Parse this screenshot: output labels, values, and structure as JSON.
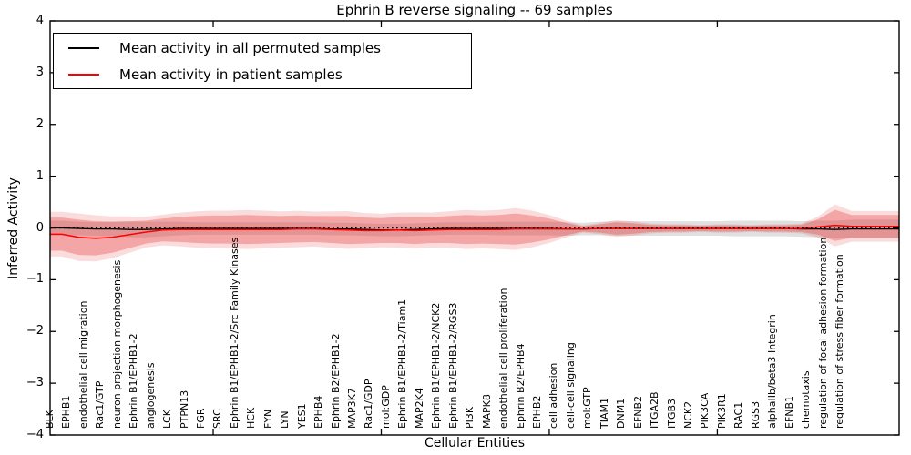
{
  "figure": {
    "title": "Ephrin B reverse signaling -- 69 samples",
    "xlabel": "Cellular Entities",
    "ylabel": "Inferred Activity"
  },
  "legend": {
    "items": [
      {
        "label": "Mean activity in all permuted samples",
        "color": "#000000"
      },
      {
        "label": "Mean activity in patient samples",
        "color": "#ff0000"
      }
    ]
  },
  "chart_data": {
    "type": "line",
    "title": "Ephrin B reverse signaling -- 69 samples",
    "xlabel": "Cellular Entities",
    "ylabel": "Inferred Activity",
    "ylim": [
      -4,
      4
    ],
    "ytick_labels": [
      "4",
      "3",
      "2",
      "1",
      "0",
      "−1",
      "−2",
      "−3",
      "−4"
    ],
    "ytick_values": [
      4,
      3,
      2,
      1,
      0,
      -1,
      -2,
      -3,
      -4
    ],
    "xtick_indices": [
      9,
      19,
      29,
      39
    ],
    "grid": false,
    "legend_position": "upper left",
    "zero_reference_line": {
      "style": "dotted",
      "color": "#000000",
      "y": 0
    },
    "colors": {
      "permuted_line": "#000000",
      "patient_line": "#ff0000",
      "permuted_band": "rgba(0,0,0,0.12)",
      "patient_band_inner": "rgba(230,40,40,0.30)",
      "patient_band_outer": "rgba(230,40,40,0.16)"
    },
    "categories": [
      "BLK",
      "EPHB1",
      "endothelial cell migration",
      "Rac1/GTP",
      "neuron projection morphogenesis",
      "Ephrin B1/EPHB1-2",
      "angiogenesis",
      "LCK",
      "PTPN13",
      "FGR",
      "SRC",
      "Ephrin B1/EPHB1-2/Src Family Kinases",
      "HCK",
      "FYN",
      "LYN",
      "YES1",
      "EPHB4",
      "Ephrin B2/EPHB1-2",
      "MAP3K7",
      "Rac1/GDP",
      "mol:GDP",
      "Ephrin B1/EPHB1-2/Tiam1",
      "MAP2K4",
      "Ephrin B1/EPHB1-2/NCK2",
      "Ephrin B1/EPHB1-2/RGS3",
      "PI3K",
      "MAPK8",
      "endothelial cell proliferation",
      "Ephrin B2/EPHB4",
      "EPHB2",
      "cell adhesion",
      "cell-cell signaling",
      "mol:GTP",
      "TIAM1",
      "DNM1",
      "EFNB2",
      "ITGA2B",
      "ITGB3",
      "NCK2",
      "PIK3CA",
      "PIK3R1",
      "RAC1",
      "RGS3",
      "alphaIIb/beta3 Integrin",
      "EFNB1",
      "chemotaxis",
      "regulation of focal adhesion formation",
      "regulation of stress fiber formation"
    ],
    "series": [
      {
        "name": "Mean activity in all permuted samples",
        "color": "#000000",
        "values": [
          0,
          -0.01,
          -0.02,
          -0.02,
          -0.03,
          -0.03,
          -0.02,
          -0.01,
          -0.01,
          -0.01,
          -0.01,
          -0.01,
          -0.01,
          -0.01,
          -0.01,
          -0.01,
          -0.02,
          -0.02,
          -0.03,
          -0.04,
          -0.04,
          -0.03,
          -0.02,
          -0.01,
          -0.01,
          -0.01,
          -0.01,
          -0.01,
          -0.01,
          -0.01,
          -0.02,
          -0.02,
          -0.01,
          -0.01,
          -0.01,
          -0.01,
          -0.01,
          -0.01,
          -0.01,
          -0.01,
          -0.01,
          -0.01,
          -0.01,
          -0.01,
          -0.02,
          -0.02,
          -0.03,
          -0.02
        ],
        "band_halfwidth": [
          0.14,
          0.13,
          0.13,
          0.14,
          0.15,
          0.15,
          0.14,
          0.13,
          0.12,
          0.12,
          0.12,
          0.12,
          0.12,
          0.12,
          0.12,
          0.12,
          0.12,
          0.12,
          0.12,
          0.12,
          0.12,
          0.12,
          0.12,
          0.12,
          0.12,
          0.12,
          0.13,
          0.13,
          0.13,
          0.13,
          0.13,
          0.12,
          0.13,
          0.14,
          0.14,
          0.14,
          0.14,
          0.14,
          0.14,
          0.14,
          0.15,
          0.15,
          0.15,
          0.15,
          0.15,
          0.16,
          0.17,
          0.18
        ]
      },
      {
        "name": "Mean activity in patient samples",
        "color": "#ff0000",
        "values": [
          -0.12,
          -0.18,
          -0.2,
          -0.18,
          -0.13,
          -0.08,
          -0.04,
          -0.03,
          -0.03,
          -0.03,
          -0.03,
          -0.03,
          -0.03,
          -0.03,
          -0.02,
          -0.02,
          -0.03,
          -0.04,
          -0.05,
          -0.05,
          -0.04,
          -0.05,
          -0.04,
          -0.03,
          -0.03,
          -0.03,
          -0.03,
          -0.02,
          -0.02,
          -0.02,
          -0.02,
          -0.02,
          -0.01,
          -0.01,
          -0.01,
          -0.01,
          -0.01,
          -0.01,
          -0.01,
          -0.01,
          -0.01,
          -0.01,
          -0.01,
          -0.01,
          -0.01,
          0.02,
          0.05,
          0.03
        ],
        "band_halfwidth": [
          0.32,
          0.34,
          0.33,
          0.3,
          0.26,
          0.22,
          0.22,
          0.24,
          0.26,
          0.27,
          0.27,
          0.28,
          0.27,
          0.26,
          0.26,
          0.25,
          0.26,
          0.27,
          0.25,
          0.24,
          0.25,
          0.26,
          0.25,
          0.26,
          0.28,
          0.27,
          0.28,
          0.3,
          0.26,
          0.2,
          0.12,
          0.05,
          0.08,
          0.12,
          0.1,
          0.07,
          0.06,
          0.06,
          0.05,
          0.06,
          0.06,
          0.05,
          0.06,
          0.06,
          0.07,
          0.15,
          0.3,
          0.22
        ]
      }
    ]
  }
}
